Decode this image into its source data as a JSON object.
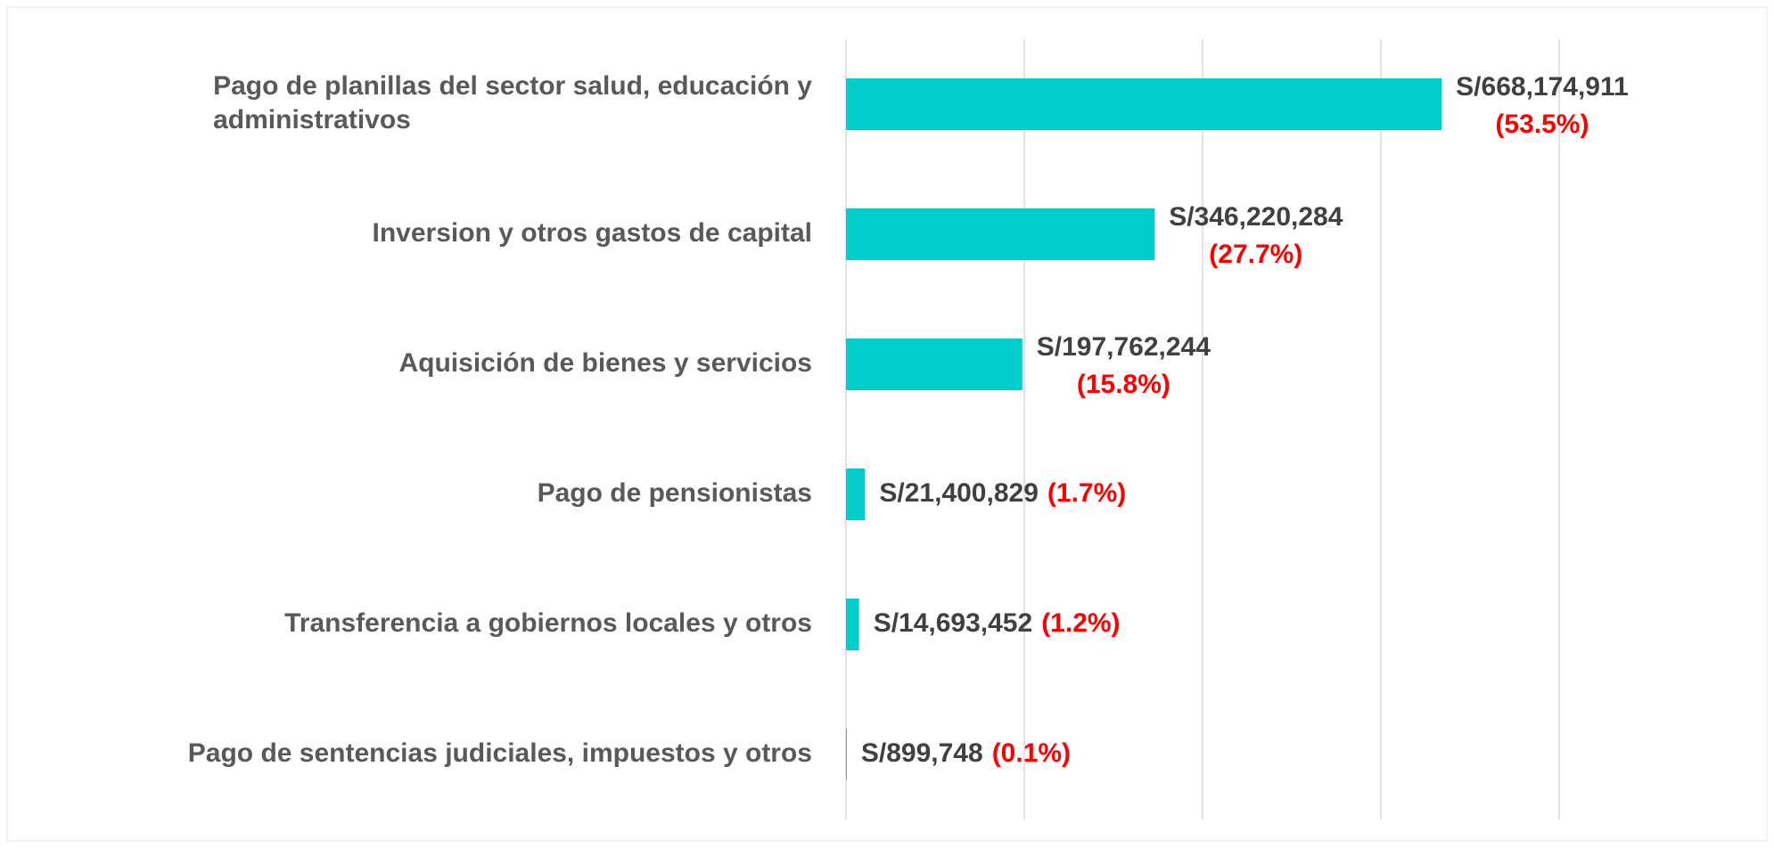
{
  "chart_data": {
    "type": "barh",
    "categories": [
      "Pago de planillas del sector salud, educación y administrativos",
      "Inversion y otros gastos de capital",
      "Aquisición de bienes y servicios",
      "Pago de pensionistas",
      "Transferencia a gobiernos locales y otros",
      "Pago de sentencias judiciales, impuestos y otros"
    ],
    "values": [
      668174911,
      346220284,
      197762244,
      21400829,
      14693452,
      899748
    ],
    "value_labels": [
      "S/668,174,911",
      "S/346,220,284",
      "S/197,762,244",
      "S/21,400,829",
      "S/14,693,452",
      "S/899,748"
    ],
    "percents": [
      53.5,
      27.7,
      15.8,
      1.7,
      1.2,
      0.1
    ],
    "percent_labels": [
      "(53.5%)",
      "(27.7%)",
      "(15.8%)",
      "(1.7%)",
      "(1.2%)",
      "(0.1%)"
    ],
    "color": "#00cccc",
    "xlim": [
      0,
      800000000
    ],
    "xticks": [
      0,
      200000000,
      400000000,
      600000000,
      800000000
    ],
    "grid": true
  }
}
